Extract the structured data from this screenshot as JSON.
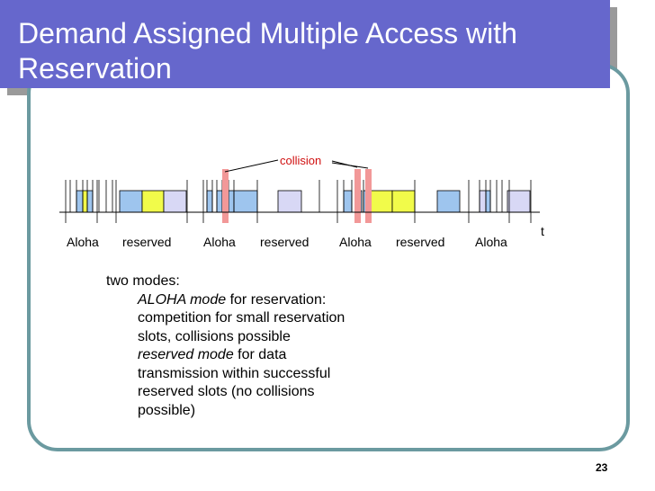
{
  "slide": {
    "title": "Demand Assigned Multiple Access with Reservation",
    "page_number": "23"
  },
  "diagram": {
    "collision_label": "collision",
    "time_label": "t",
    "phase_labels": [
      "Aloha",
      "reserved",
      "Aloha",
      "reserved",
      "Aloha",
      "reserved",
      "Aloha"
    ]
  },
  "modes": {
    "heading": "two modes:",
    "aloha_term": "ALOHA mode",
    "aloha_rest": " for reservation:",
    "aloha_desc_1": "competition for small reservation",
    "aloha_desc_2": "slots, collisions possible",
    "reserved_term": "reserved mode",
    "reserved_rest": " for data",
    "reserved_desc_1": "transmission within successful",
    "reserved_desc_2": "reserved slots (no collisions",
    "reserved_desc_3": "possible)"
  },
  "colors": {
    "title_bg": "#6667cc",
    "frame_border": "#6b9aa0",
    "blue_slot": "#9ec5ee",
    "yellow_slot": "#f1fb4a",
    "lavender_slot": "#d8d8f5",
    "collision": "#f29898",
    "collision_text": "#d01010"
  }
}
